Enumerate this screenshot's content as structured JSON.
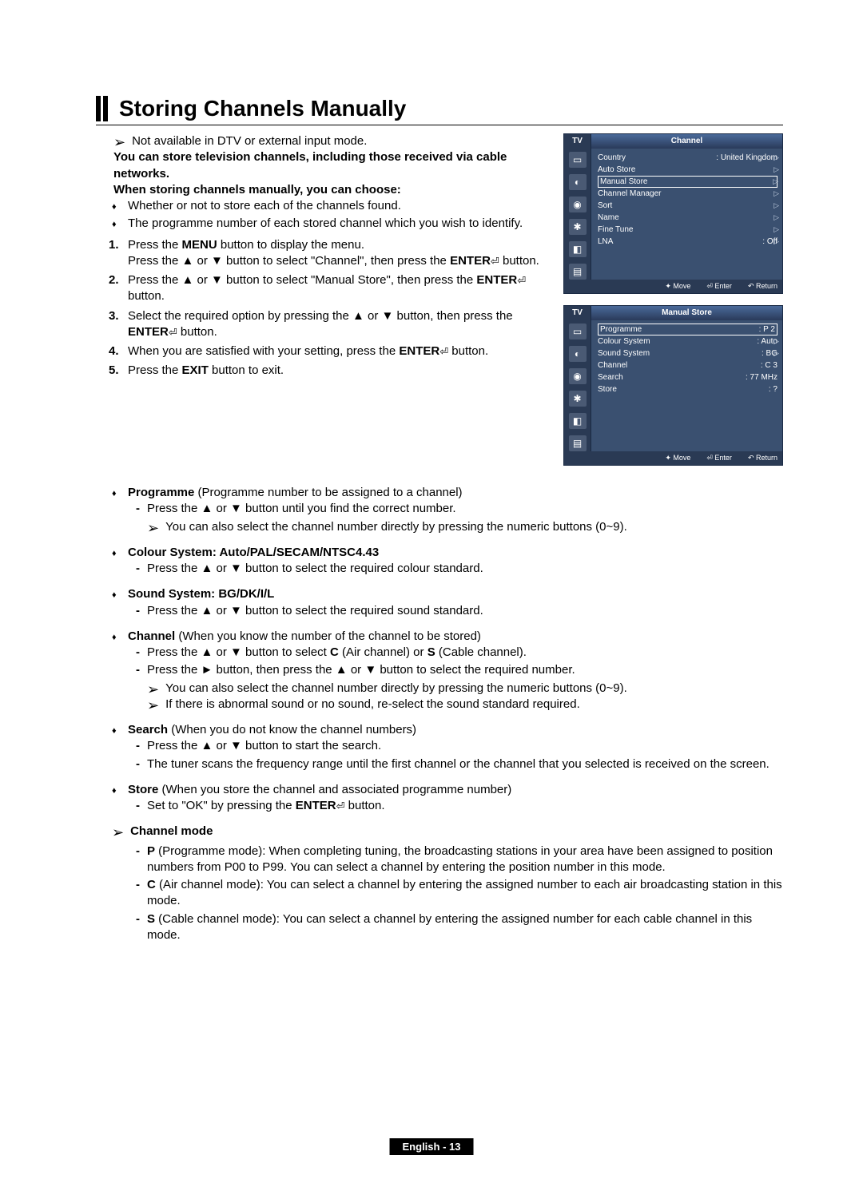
{
  "page": {
    "title": "Storing Channels Manually",
    "footer": "English - 13"
  },
  "intro": {
    "note": "Not available in DTV or external input mode.",
    "bold1": "You can store television channels, including those received via cable networks.",
    "bold2": "When storing channels manually, you can choose:",
    "bullets": [
      "Whether or not to store each of the channels found.",
      "The programme number of each stored channel which you wish to identify."
    ]
  },
  "steps": {
    "s1a": "Press the ",
    "s1b": "MENU",
    "s1c": " button to display the menu.",
    "s1d": "Press the ▲ or ▼ button to select \"Channel\", then press the ",
    "s1e": "ENTER",
    "s1f": " button.",
    "s2a": "Press the ▲ or ▼ button to select \"Manual Store\", then press the ",
    "s2b": "ENTER",
    "s2c": " button.",
    "s3a": "Select the required option by pressing the ▲ or ▼ button, then press the ",
    "s3b": "ENTER",
    "s3c": " button.",
    "s4a": "When you are satisfied with your setting, press the ",
    "s4b": "ENTER",
    "s4c": " button.",
    "s5a": "Press the ",
    "s5b": "EXIT",
    "s5c": " button to exit."
  },
  "details": {
    "programme": {
      "head_a": "Programme",
      "head_b": " (Programme number to be assigned to a channel)",
      "d1": "Press the ▲ or ▼ button until you find the correct number.",
      "note": "You can also select the channel number directly by pressing the numeric buttons (0~9)."
    },
    "colour": {
      "head": "Colour System: Auto/PAL/SECAM/NTSC4.43",
      "d1": "Press the ▲ or ▼ button to select the required colour standard."
    },
    "sound": {
      "head": "Sound System: BG/DK/I/L",
      "d1": "Press the ▲ or ▼ button to select the required sound standard."
    },
    "channel": {
      "head_a": "Channel",
      "head_b": " (When you know the number of the channel to be stored)",
      "d1_a": "Press the ▲ or ▼ button to select ",
      "d1_b": "C",
      "d1_c": " (Air channel) or ",
      "d1_d": "S",
      "d1_e": " (Cable channel).",
      "d2": "Press the ► button, then press the ▲ or ▼ button to select the required number.",
      "note1": "You can also select the channel number directly by pressing the numeric buttons (0~9).",
      "note2": "If there is abnormal sound or no sound, re-select the sound standard required."
    },
    "search": {
      "head_a": "Search",
      "head_b": " (When you do not know the channel numbers)",
      "d1": "Press the ▲ or ▼ button to start the search.",
      "d2": "The tuner scans the frequency range until the first channel or the channel that you selected is received on the screen."
    },
    "store": {
      "head_a": "Store",
      "head_b": " (When you store the channel and associated programme number)",
      "d1_a": "Set to \"OK\" by pressing the ",
      "d1_b": "ENTER",
      "d1_c": " button."
    },
    "mode": {
      "head": "Channel mode",
      "p_a": "P",
      "p_b": " (Programme mode): When completing tuning, the broadcasting stations in your area have been assigned to position numbers from P00 to P99. You can select a channel by entering the position number in this mode.",
      "c_a": "C",
      "c_b": " (Air channel mode): You can select a channel by entering the assigned number to each air broadcasting station in this mode.",
      "s_a": "S",
      "s_b": " (Cable channel mode): You can select a channel by entering the assigned number for each cable channel in this mode."
    }
  },
  "panel1": {
    "tv": "TV",
    "title": "Channel",
    "items": [
      {
        "k": "Country",
        "v": ": United Kingdom",
        "tri": true
      },
      {
        "k": "Auto Store",
        "v": "",
        "tri": true
      },
      {
        "k": "Manual Store",
        "v": "",
        "tri": true,
        "boxed": true
      },
      {
        "k": "Channel Manager",
        "v": "",
        "tri": true
      },
      {
        "k": "Sort",
        "v": "",
        "tri": true
      },
      {
        "k": "Name",
        "v": "",
        "tri": true
      },
      {
        "k": "Fine Tune",
        "v": "",
        "tri": true
      },
      {
        "k": "LNA",
        "v": ": Off",
        "tri": true
      }
    ],
    "foot": {
      "move": "Move",
      "enter": "Enter",
      "return": "Return"
    }
  },
  "panel2": {
    "tv": "TV",
    "title": "Manual Store",
    "items": [
      {
        "k": "Programme",
        "v": ": P 2",
        "tri": false,
        "boxed": true
      },
      {
        "k": "Colour System",
        "v": ": Auto",
        "tri": true
      },
      {
        "k": "Sound System",
        "v": ": BG",
        "tri": true
      },
      {
        "k": "Channel",
        "v": ": C 3",
        "tri": false
      },
      {
        "k": "Search",
        "v": ": 77 MHz",
        "tri": false
      },
      {
        "k": "Store",
        "v": ": ?",
        "tri": false
      }
    ],
    "foot": {
      "move": "Move",
      "enter": "Enter",
      "return": "Return"
    }
  }
}
